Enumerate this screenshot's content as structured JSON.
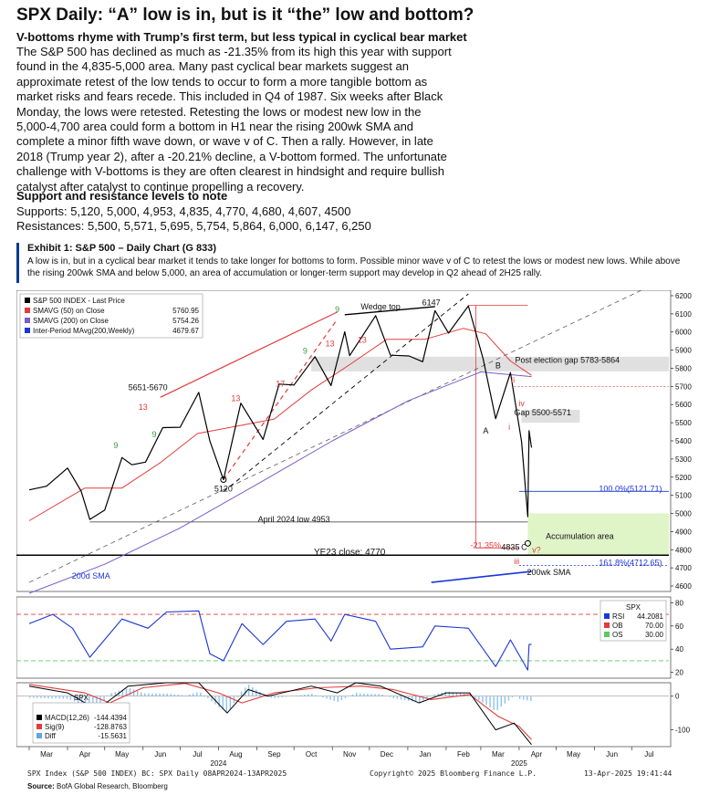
{
  "header": {
    "title": "SPX Daily: “A” low is in, but is it “the” low and bottom?",
    "subtitle": "V-bottoms rhyme with Trump’s first term, but less typical in cyclical bear market",
    "body": "The S&P 500 has declined as much as -21.35% from its high this year with support found in the 4,835-5,000 area. Many past cyclical bear markets suggest an approximate retest of the low tends to occur to form a more tangible bottom as market risks and fears recede. This included in Q4 of 1987. Six weeks after Black Monday, the lows were retested. Retesting the lows or modest new low in the 5,000-4,700 area could form a bottom in H1 near the rising 200wk SMA and complete a minor fifth wave down, or wave v of C. Then a rally. However, in late 2018 (Trump year 2), after a -20.21% decline, a V-bottom formed. The unfortunate challenge with V-bottoms is they are often clearest in hindsight and require bullish catalyst after catalyst to continue propelling a recovery."
  },
  "levels": {
    "title": "Support and resistance levels to note",
    "supports": "Supports: 5,120, 5,000, 4,953, 4,835, 4,770, 4,680, 4,607, 4500",
    "resistances": "Resistances: 5,500, 5,571, 5,695, 5,754, 5,864, 6,000, 6,147, 6,250"
  },
  "exhibit": {
    "title": "Exhibit 1: S&P 500 – Daily Chart (G 833)",
    "description": "A low is in, but in a cyclical bear market it tends to take longer for bottoms to form. Possible minor wave v of C to retest the lows or modest new lows. While above the rising 200wk SMA and below 5,000, an area of accumulation or longer-term support may develop in Q2 ahead of 2H25 rally."
  },
  "footer": {
    "left": "SPX Index (S&P 500 INDEX) BC: SPX  Daily 08APR2024-13APR2025",
    "mid": "Copyright© 2025 Bloomberg Finance L.P.",
    "right": "13-Apr-2025 19:41:44",
    "source_label": "Source:",
    "source_text": " BofA Global Research, Bloomberg"
  },
  "chart_data": {
    "type": "line",
    "price_panel": {
      "legend": [
        {
          "name": "S&P 500 INDEX - Last Price",
          "value": "",
          "color": "#000000"
        },
        {
          "name": "SMAVG (50)  on Close",
          "value": "5760.95",
          "color": "#e33b3b"
        },
        {
          "name": "SMAVG (200)  on Close",
          "value": "5754.26",
          "color": "#7b5cc9"
        },
        {
          "name": "Inter-Period MAvg(200,Weekly)",
          "value": "4679.67",
          "color": "#1b36d6"
        }
      ],
      "y_ticks": [
        4600,
        4700,
        4800,
        4900,
        5000,
        5100,
        5200,
        5300,
        5400,
        5500,
        5600,
        5700,
        5800,
        5900,
        6000,
        6100,
        6200
      ],
      "ylim": [
        4570,
        6230
      ],
      "annotations": [
        {
          "text": "Wedge top",
          "x": "2024-12-10",
          "y": 6125
        },
        {
          "text": "6147",
          "x": "2025-01-20",
          "y": 6147
        },
        {
          "text": "5651-5670",
          "x": "2024-06-05",
          "y": 5680
        },
        {
          "text": "5120",
          "x": "2024-08-05",
          "y": 5120
        },
        {
          "text": "April 2024 low 4953",
          "x": "2024-10-01",
          "y": 4953
        },
        {
          "text": "YE23 close: 4770",
          "x": "2024-11-15",
          "y": 4770
        },
        {
          "text": "Post election gap 5783-5864",
          "x": "2025-05-10",
          "y": 5830
        },
        {
          "text": "Gap 5500-5571",
          "x": "2025-04-20",
          "y": 5540
        },
        {
          "text": "100.0%(5121.71)",
          "x": "2025-06-30",
          "y": 5121.71
        },
        {
          "text": "161.8%(4712.65)",
          "x": "2025-06-30",
          "y": 4712.65
        },
        {
          "text": "Accumulation area",
          "x": "2025-05-20",
          "y": 4860
        },
        {
          "text": "-21.35%",
          "x": "2025-03-05",
          "y": 4810
        },
        {
          "text": "4835",
          "x": "2025-03-25",
          "y": 4800
        },
        {
          "text": "200wk SMA",
          "x": "2025-04-25",
          "y": 4660
        },
        {
          "text": "200d SMA",
          "x": "2024-04-20",
          "y": 4640
        },
        {
          "text": "B",
          "x": "2025-03-15",
          "y": 5800
        },
        {
          "text": "A",
          "x": "2025-03-05",
          "y": 5440
        },
        {
          "text": "C",
          "x": "2025-04-05",
          "y": 4800
        },
        {
          "text": "v?",
          "x": "2025-04-15",
          "y": 4785
        },
        {
          "text": "i",
          "x": "2025-03-24",
          "y": 5460
        },
        {
          "text": "ii",
          "x": "2025-03-27",
          "y": 5720
        },
        {
          "text": "iii",
          "x": "2025-03-30",
          "y": 4720
        },
        {
          "text": "iv",
          "x": "2025-04-03",
          "y": 5590
        },
        {
          "text": "9",
          "x": "2024-06-10",
          "y": 5420
        },
        {
          "text": "13",
          "x": "2024-06-01",
          "y": 5570
        },
        {
          "text": "13",
          "x": "2024-08-15",
          "y": 5620
        },
        {
          "text": "17",
          "x": "2024-09-20",
          "y": 5700
        },
        {
          "text": "9",
          "x": "2024-10-10",
          "y": 5880
        },
        {
          "text": "13",
          "x": "2024-10-30",
          "y": 5920
        },
        {
          "text": "9",
          "x": "2024-11-05",
          "y": 6110
        },
        {
          "text": "13",
          "x": "2024-11-25",
          "y": 5940
        },
        {
          "text": "9",
          "x": "2024-05-10",
          "y": 5360
        }
      ],
      "price_path": [
        [
          "2024-03-01",
          5130
        ],
        [
          "2024-03-15",
          5150
        ],
        [
          "2024-04-01",
          5250
        ],
        [
          "2024-04-12",
          5123
        ],
        [
          "2024-04-19",
          4967
        ],
        [
          "2024-05-01",
          5018
        ],
        [
          "2024-05-15",
          5308
        ],
        [
          "2024-05-23",
          5268
        ],
        [
          "2024-06-03",
          5283
        ],
        [
          "2024-06-17",
          5473
        ],
        [
          "2024-07-01",
          5475
        ],
        [
          "2024-07-16",
          5667
        ],
        [
          "2024-07-25",
          5399
        ],
        [
          "2024-08-05",
          5186
        ],
        [
          "2024-08-19",
          5608
        ],
        [
          "2024-09-06",
          5408
        ],
        [
          "2024-09-19",
          5713
        ],
        [
          "2024-10-01",
          5708
        ],
        [
          "2024-10-18",
          5864
        ],
        [
          "2024-10-31",
          5705
        ],
        [
          "2024-11-11",
          6001
        ],
        [
          "2024-11-15",
          5870
        ],
        [
          "2024-12-06",
          6090
        ],
        [
          "2024-12-18",
          5872
        ],
        [
          "2025-01-02",
          5868
        ],
        [
          "2025-01-13",
          5836
        ],
        [
          "2025-01-23",
          6118
        ],
        [
          "2025-02-03",
          5994
        ],
        [
          "2025-02-19",
          6144
        ],
        [
          "2025-03-03",
          5849
        ],
        [
          "2025-03-13",
          5522
        ],
        [
          "2025-03-25",
          5776
        ],
        [
          "2025-04-03",
          5396
        ],
        [
          "2025-04-08",
          4982
        ],
        [
          "2025-04-09",
          5456
        ],
        [
          "2025-04-11",
          5363
        ]
      ],
      "sma50_path": [
        [
          "2024-03-01",
          4960
        ],
        [
          "2024-04-15",
          5140
        ],
        [
          "2024-05-15",
          5140
        ],
        [
          "2024-06-15",
          5280
        ],
        [
          "2024-07-15",
          5440
        ],
        [
          "2024-08-15",
          5480
        ],
        [
          "2024-09-15",
          5520
        ],
        [
          "2024-10-15",
          5680
        ],
        [
          "2024-11-15",
          5820
        ],
        [
          "2024-12-15",
          5960
        ],
        [
          "2025-01-15",
          5960
        ],
        [
          "2025-02-15",
          6020
        ],
        [
          "2025-03-05",
          5990
        ],
        [
          "2025-03-25",
          5840
        ],
        [
          "2025-04-11",
          5761
        ]
      ],
      "sma200_path": [
        [
          "2024-03-01",
          4560
        ],
        [
          "2024-05-01",
          4720
        ],
        [
          "2024-07-01",
          4920
        ],
        [
          "2024-09-01",
          5160
        ],
        [
          "2024-11-01",
          5400
        ],
        [
          "2025-01-01",
          5620
        ],
        [
          "2025-03-01",
          5780
        ],
        [
          "2025-04-11",
          5754
        ]
      ],
      "wk200_path": [
        [
          "2025-01-20",
          4620
        ],
        [
          "2025-03-01",
          4650
        ],
        [
          "2025-04-11",
          4680
        ]
      ]
    },
    "rsi_panel": {
      "legend": [
        {
          "name": "SPX",
          "value": "",
          "color": "#000000"
        },
        {
          "name": "RSI",
          "value": "44.2081",
          "color": "#1b36d6"
        },
        {
          "name": "OB",
          "value": "70.00",
          "color": "#e33b3b"
        },
        {
          "name": "OS",
          "value": "30.00",
          "color": "#5cc95c"
        }
      ],
      "y_ticks": [
        20,
        40,
        60,
        80
      ],
      "ylim": [
        15,
        85
      ],
      "rsi_path": [
        [
          "2024-03-01",
          62
        ],
        [
          "2024-03-20",
          70
        ],
        [
          "2024-04-05",
          58
        ],
        [
          "2024-04-19",
          33
        ],
        [
          "2024-05-15",
          66
        ],
        [
          "2024-06-05",
          58
        ],
        [
          "2024-06-20",
          72
        ],
        [
          "2024-07-16",
          73
        ],
        [
          "2024-07-25",
          36
        ],
        [
          "2024-08-05",
          30
        ],
        [
          "2024-08-20",
          62
        ],
        [
          "2024-09-06",
          44
        ],
        [
          "2024-09-25",
          64
        ],
        [
          "2024-10-18",
          66
        ],
        [
          "2024-10-31",
          47
        ],
        [
          "2024-11-11",
          70
        ],
        [
          "2024-12-06",
          64
        ],
        [
          "2024-12-18",
          40
        ],
        [
          "2025-01-13",
          42
        ],
        [
          "2025-01-23",
          60
        ],
        [
          "2025-02-19",
          58
        ],
        [
          "2025-03-13",
          25
        ],
        [
          "2025-03-25",
          48
        ],
        [
          "2025-04-08",
          22
        ],
        [
          "2025-04-09",
          44
        ],
        [
          "2025-04-11",
          44.2
        ]
      ]
    },
    "macd_panel": {
      "legend": [
        {
          "name": "SPX",
          "value": "",
          "color": "#000000"
        },
        {
          "name": "MACD(12,26)",
          "value": "-144.4394",
          "color": "#000000"
        },
        {
          "name": "Sig(9)",
          "value": "-128.8763",
          "color": "#e33b3b"
        },
        {
          "name": "Diff",
          "value": "-15.5631",
          "color": "#5fa8e0"
        }
      ],
      "y_ticks": [
        -100,
        0
      ],
      "ylim": [
        -150,
        40
      ],
      "macd_path": [
        [
          "2024-03-01",
          30
        ],
        [
          "2024-04-01",
          10
        ],
        [
          "2024-04-25",
          -40
        ],
        [
          "2024-05-20",
          30
        ],
        [
          "2024-06-20",
          40
        ],
        [
          "2024-07-16",
          40
        ],
        [
          "2024-08-08",
          -50
        ],
        [
          "2024-08-25",
          20
        ],
        [
          "2024-09-10",
          0
        ],
        [
          "2024-10-15",
          30
        ],
        [
          "2024-11-05",
          10
        ],
        [
          "2024-11-20",
          40
        ],
        [
          "2024-12-10",
          30
        ],
        [
          "2025-01-10",
          -20
        ],
        [
          "2025-02-01",
          10
        ],
        [
          "2025-02-20",
          10
        ],
        [
          "2025-03-13",
          -100
        ],
        [
          "2025-03-28",
          -80
        ],
        [
          "2025-04-11",
          -144
        ]
      ],
      "signal_path": [
        [
          "2024-03-01",
          35
        ],
        [
          "2024-04-15",
          10
        ],
        [
          "2024-05-05",
          -20
        ],
        [
          "2024-06-01",
          25
        ],
        [
          "2024-07-05",
          38
        ],
        [
          "2024-08-01",
          10
        ],
        [
          "2024-08-20",
          -20
        ],
        [
          "2024-09-15",
          10
        ],
        [
          "2024-10-20",
          25
        ],
        [
          "2024-11-25",
          30
        ],
        [
          "2024-12-20",
          20
        ],
        [
          "2025-01-20",
          -10
        ],
        [
          "2025-02-20",
          5
        ],
        [
          "2025-03-15",
          -60
        ],
        [
          "2025-04-01",
          -90
        ],
        [
          "2025-04-11",
          -129
        ]
      ]
    },
    "x_axis": {
      "months": [
        "Mar",
        "Apr",
        "May",
        "Jun",
        "Jul",
        "Aug",
        "Sep",
        "Oct",
        "Nov",
        "Dec",
        "Jan",
        "Feb",
        "Mar",
        "Apr",
        "May",
        "Jun",
        "Jul"
      ],
      "years": [
        "2024",
        "2025"
      ]
    }
  },
  "style": {
    "price_color": "#000000",
    "sma50_color": "#e33b3b",
    "sma200_color": "#7b5cc9",
    "wk200_color": "#1b36d6",
    "accumulation_fill": "#dff5c8",
    "gap_fill": "#d8d8d8",
    "exhibit_accent": "#0a3b8c"
  }
}
